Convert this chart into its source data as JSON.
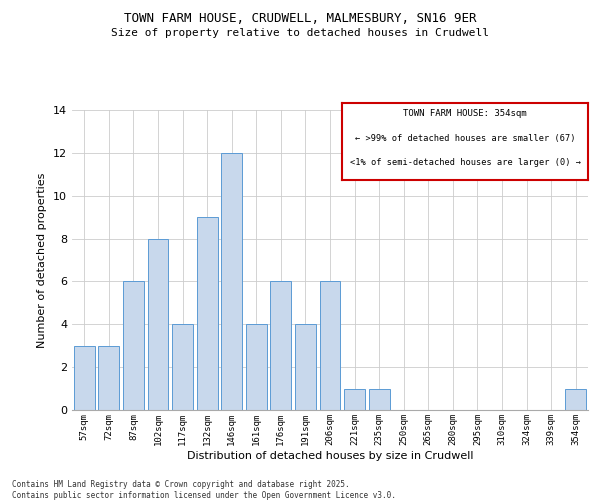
{
  "title_line1": "TOWN FARM HOUSE, CRUDWELL, MALMESBURY, SN16 9ER",
  "title_line2": "Size of property relative to detached houses in Crudwell",
  "xlabel": "Distribution of detached houses by size in Crudwell",
  "ylabel": "Number of detached properties",
  "categories": [
    "57sqm",
    "72sqm",
    "87sqm",
    "102sqm",
    "117sqm",
    "132sqm",
    "146sqm",
    "161sqm",
    "176sqm",
    "191sqm",
    "206sqm",
    "221sqm",
    "235sqm",
    "250sqm",
    "265sqm",
    "280sqm",
    "295sqm",
    "310sqm",
    "324sqm",
    "339sqm",
    "354sqm"
  ],
  "values": [
    3,
    3,
    6,
    8,
    4,
    9,
    12,
    4,
    6,
    4,
    6,
    1,
    1,
    0,
    0,
    0,
    0,
    0,
    0,
    0,
    1
  ],
  "bar_color": "#c8d8ec",
  "bar_edge_color": "#5b9bd5",
  "grid_color": "#cccccc",
  "background_color": "#ffffff",
  "legend_box_color": "#cc0000",
  "legend_title": "TOWN FARM HOUSE: 354sqm",
  "legend_line1": "← >99% of detached houses are smaller (67)",
  "legend_line2": "<1% of semi-detached houses are larger (0) →",
  "footnote_line1": "Contains HM Land Registry data © Crown copyright and database right 2025.",
  "footnote_line2": "Contains public sector information licensed under the Open Government Licence v3.0.",
  "ylim": [
    0,
    14
  ],
  "yticks": [
    0,
    2,
    4,
    6,
    8,
    10,
    12,
    14
  ]
}
